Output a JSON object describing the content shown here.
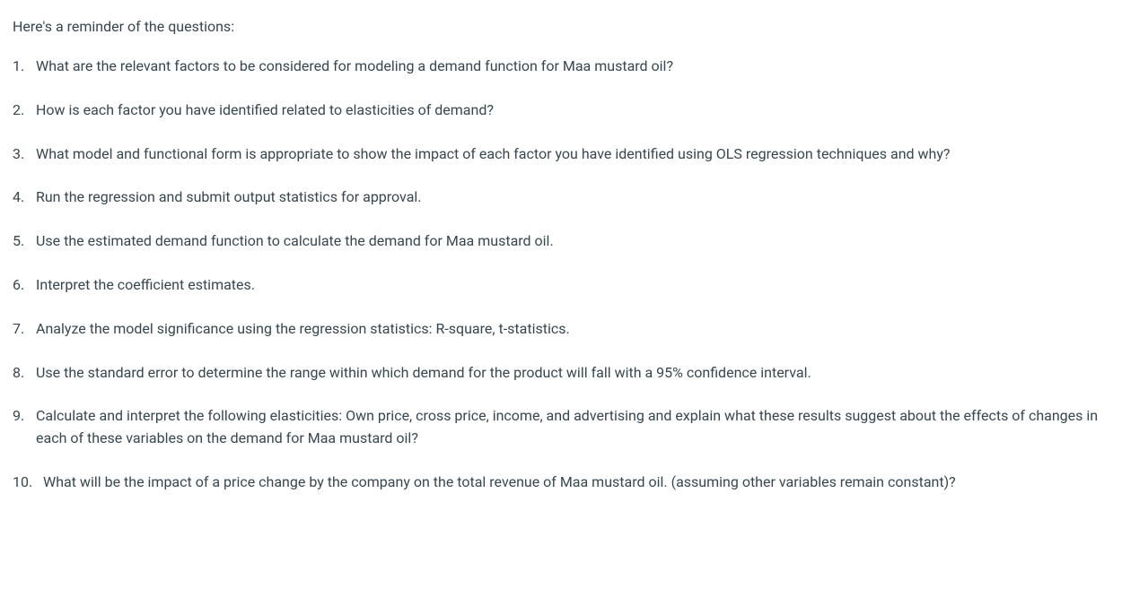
{
  "intro": "Here's a reminder of the questions:",
  "questions": [
    "What are the relevant factors to be considered for modeling a demand function for Maa mustard oil?",
    "How is each factor you have identified related to elasticities of demand?",
    "What model and functional form is appropriate to show the impact of each factor you have identified using OLS regression techniques and why?",
    "Run the regression and submit output statistics for approval.",
    "Use the estimated demand function to calculate the demand for Maa mustard oil.",
    "Interpret the coefficient estimates.",
    "Analyze the model significance using the regression statistics: R-square, t-statistics.",
    "Use the standard error to determine the range within which demand for the product will fall with a 95% confidence interval.",
    "Calculate and interpret the following elasticities: Own price, cross price, income, and advertising and explain what these results suggest about the effects of changes in each of these variables on the demand for Maa mustard oil?",
    "What will be the impact of a price change by the company on the total revenue of Maa mustard oil. (assuming other variables remain constant)?"
  ],
  "text_color": "#37474f",
  "background_color": "#ffffff",
  "font_size": 16
}
